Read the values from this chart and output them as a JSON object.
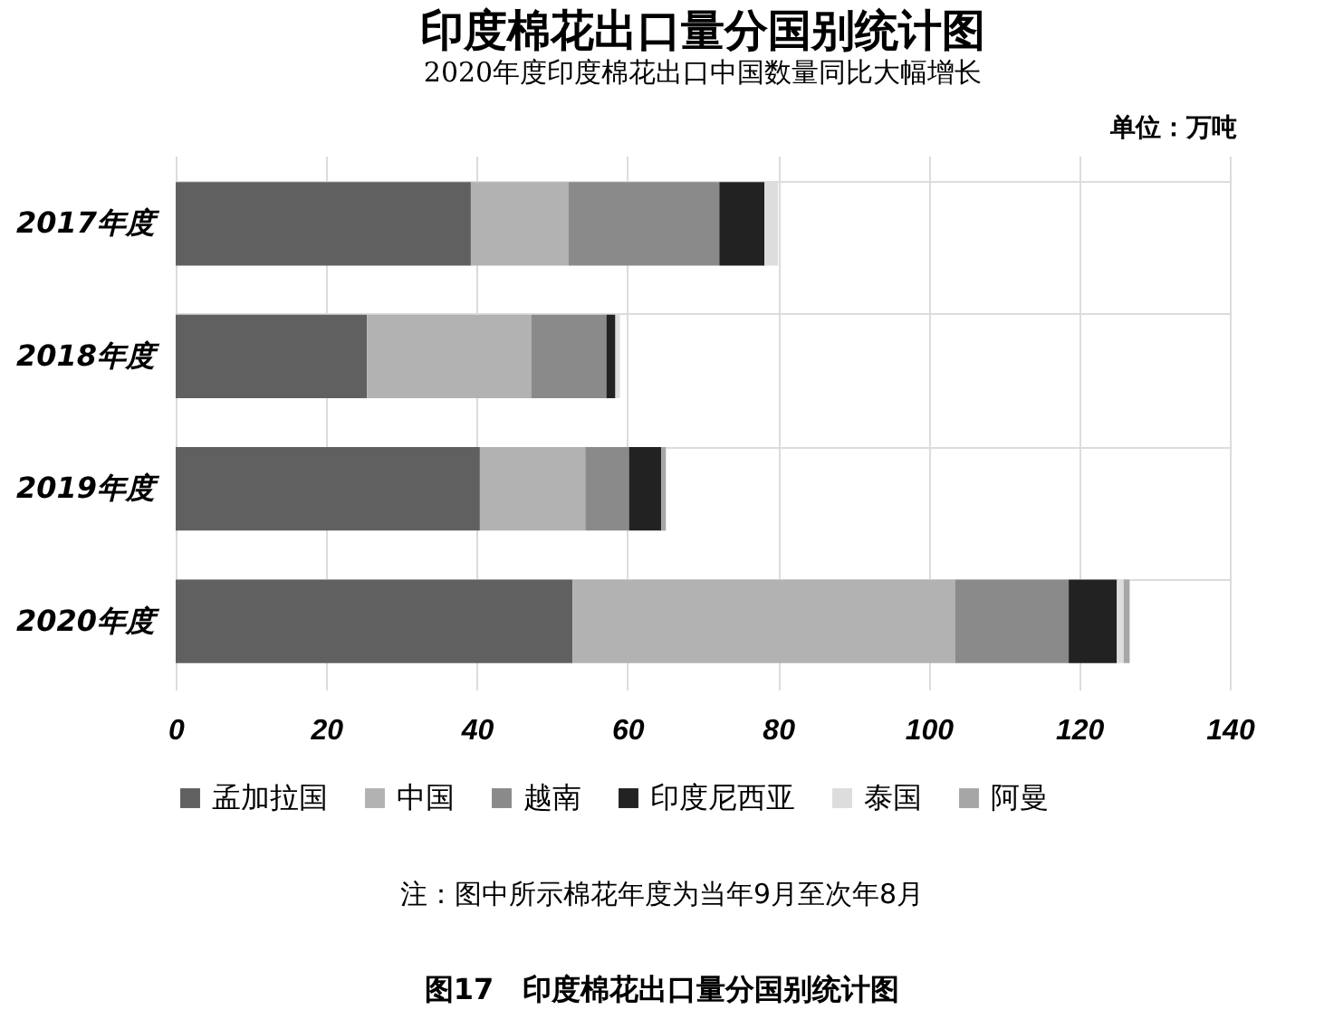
{
  "chart_data": {
    "type": "bar",
    "orientation": "horizontal",
    "stacked": true,
    "title": "印度棉花出口量分国别统计图",
    "subtitle": "2020年度印度棉花出口中国数量同比大幅增长",
    "categories": [
      "2017年度",
      "2018年度",
      "2019年度",
      "2020年度"
    ],
    "series": [
      {
        "name": "孟加拉国",
        "color": "#606060",
        "values": [
          39.2,
          25.4,
          40.4,
          52.7
        ]
      },
      {
        "name": "中国",
        "color": "#b2b2b2",
        "values": [
          13.0,
          21.8,
          14.0,
          50.8
        ]
      },
      {
        "name": "越南",
        "color": "#8a8a8a",
        "values": [
          20.0,
          10.0,
          5.8,
          15.1
        ]
      },
      {
        "name": "印度尼西亚",
        "color": "#222222",
        "values": [
          6.0,
          1.2,
          4.3,
          6.4
        ]
      },
      {
        "name": "泰国",
        "color": "#dddddd",
        "values": [
          1.8,
          0.6,
          null,
          0.9
        ]
      },
      {
        "name": "阿曼",
        "color": "#a6a6a6",
        "values": [
          null,
          null,
          0.6,
          0.8
        ]
      }
    ],
    "xlim": [
      0,
      140
    ],
    "xticks": [
      0,
      20,
      40,
      60,
      80,
      100,
      120,
      140
    ],
    "grid": true,
    "legend": "bottom",
    "annotations": [
      "单位：万吨",
      "注：图中所示棉花年度为当年9月至次年8月",
      "图17　印度棉花出口量分国别统计图"
    ]
  }
}
